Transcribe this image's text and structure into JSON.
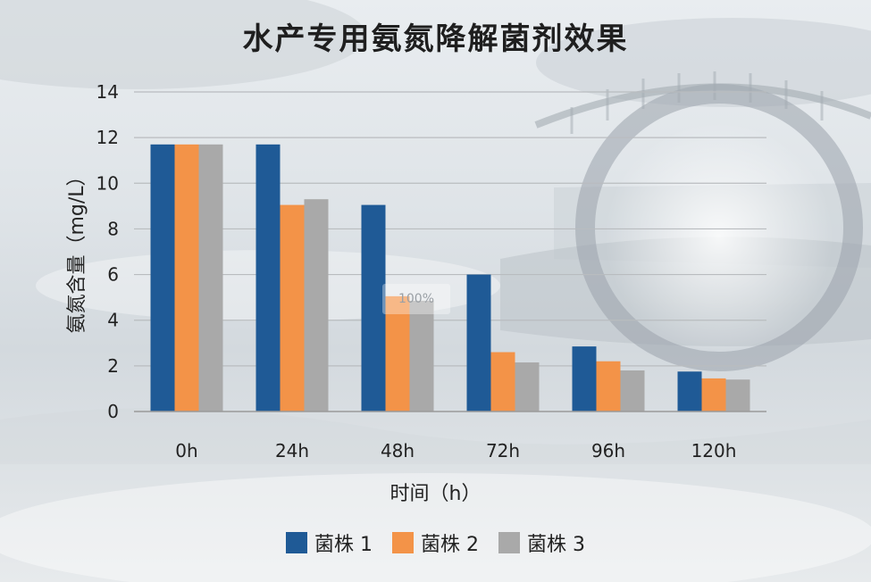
{
  "title": "水产专用氨氮降解菌剂效果",
  "watermark": "100%",
  "colors": {
    "series1": "#1f5a96",
    "series2": "#f39348",
    "series3": "#a9a9a9"
  },
  "chart_data": {
    "type": "bar",
    "title": "水产专用氨氮降解菌剂效果",
    "xlabel": "时间（h）",
    "ylabel": "氨氮含量（mg/L）",
    "categories": [
      "0h",
      "24h",
      "48h",
      "72h",
      "96h",
      "120h"
    ],
    "ylim": [
      0,
      14
    ],
    "yticks": [
      0,
      2,
      4,
      6,
      8,
      10,
      12,
      14
    ],
    "grid": true,
    "legend_position": "bottom",
    "series": [
      {
        "name": "菌株 1",
        "values": [
          11.7,
          11.7,
          9.05,
          6.0,
          2.85,
          1.75
        ]
      },
      {
        "name": "菌株 2",
        "values": [
          11.7,
          9.05,
          5.05,
          2.6,
          2.2,
          1.45
        ]
      },
      {
        "name": "菌株 3",
        "values": [
          11.7,
          9.3,
          4.85,
          2.15,
          1.8,
          1.4
        ]
      }
    ]
  }
}
